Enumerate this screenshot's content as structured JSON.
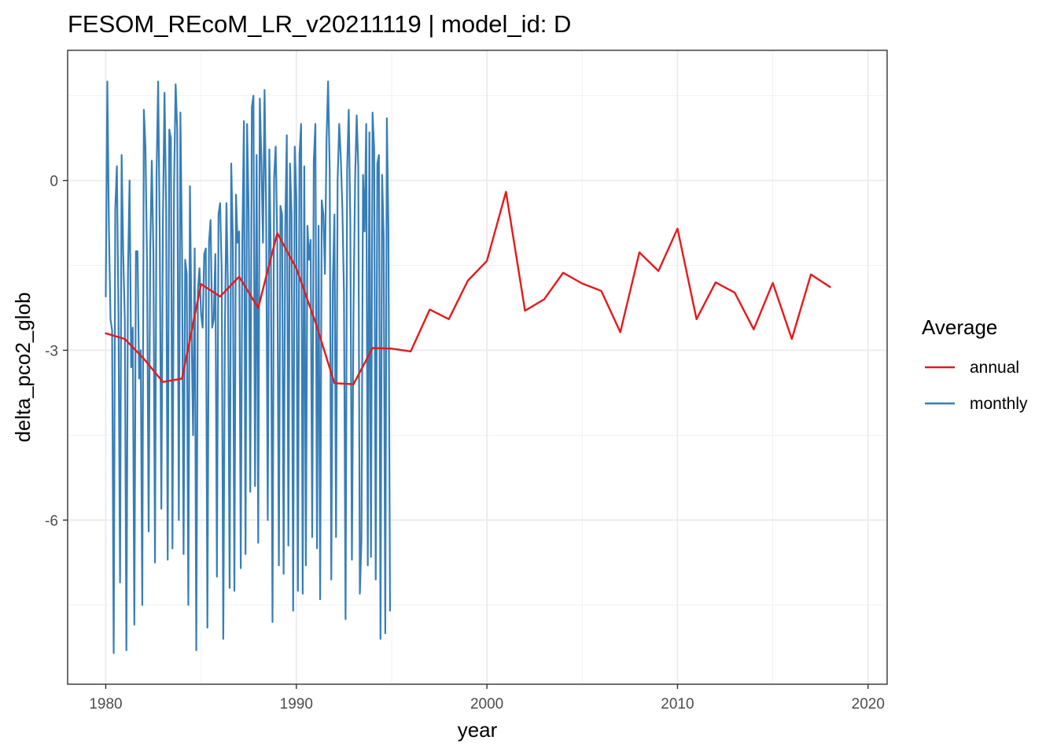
{
  "chart_data": {
    "type": "line",
    "title": "FESOM_REcoM_LR_v20211119 | model_id: D",
    "xlabel": "year",
    "ylabel": "delta_pco2_glob",
    "xlim": [
      1978,
      2021
    ],
    "ylim": [
      -8.9,
      2.3
    ],
    "x_ticks": [
      1980,
      1990,
      2000,
      2010,
      2020
    ],
    "x_tick_labels": [
      "1980",
      "1990",
      "2000",
      "2010",
      "2020"
    ],
    "y_ticks": [
      -6,
      -3,
      0
    ],
    "y_tick_labels": [
      "-6",
      "-3",
      "0"
    ],
    "grid": true,
    "legend": {
      "title": "Average",
      "position": "right",
      "entries": [
        "annual",
        "monthly"
      ]
    },
    "colors": {
      "annual": "#e41a1c",
      "monthly": "#377eb8"
    },
    "series": [
      {
        "name": "annual",
        "x": [
          1980,
          1981,
          1982,
          1983,
          1984,
          1985,
          1986,
          1987,
          1988,
          1989,
          1990,
          1991,
          1992,
          1993,
          1994,
          1995,
          1996,
          1997,
          1998,
          1999,
          2000,
          2001,
          2002,
          2003,
          2004,
          2005,
          2006,
          2007,
          2008,
          2009,
          2010,
          2011,
          2012,
          2013,
          2014,
          2015,
          2016,
          2017,
          2018
        ],
        "y": [
          -2.7,
          -2.8,
          -3.15,
          -3.56,
          -3.5,
          -1.83,
          -2.05,
          -1.7,
          -2.25,
          -0.93,
          -1.55,
          -2.5,
          -3.58,
          -3.6,
          -2.96,
          -2.97,
          -3.02,
          -2.28,
          -2.45,
          -1.77,
          -1.42,
          -0.2,
          -2.3,
          -2.1,
          -1.63,
          -1.82,
          -1.95,
          -2.68,
          -1.27,
          -1.6,
          -0.85,
          -2.45,
          -1.8,
          -1.98,
          -2.63,
          -1.81,
          -2.8,
          -1.66,
          -1.88
        ]
      },
      {
        "name": "monthly",
        "x_start": 1980.0,
        "x_step": 0.0833333,
        "y": [
          -2.05,
          1.75,
          -0.85,
          -2.45,
          -2.65,
          -8.35,
          -0.5,
          0.25,
          -2.35,
          -7.1,
          0.45,
          -1.3,
          -2.45,
          -8.3,
          -1.6,
          0.0,
          -3.3,
          -2.6,
          -7.85,
          -1.25,
          -1.25,
          -3.5,
          -3.0,
          -7.5,
          1.25,
          0.6,
          -1.45,
          -6.2,
          -1.2,
          0.35,
          -1.3,
          -6.75,
          0.15,
          1.75,
          -1.0,
          -5.8,
          -0.7,
          1.55,
          -0.45,
          -6.7,
          0.9,
          0.75,
          -6.5,
          -0.1,
          1.7,
          0.9,
          -6.0,
          1.2,
          -1.2,
          -6.6,
          -1.4,
          -1.65,
          -7.5,
          -0.1,
          -2.6,
          -4.5,
          -1.2,
          -8.3,
          -1.95,
          -1.55,
          -2.35,
          -2.6,
          -1.3,
          -1.2,
          -7.9,
          -1.1,
          -0.7,
          -2.6,
          -2.45,
          -1.3,
          -7.0,
          -0.6,
          -0.4,
          -1.6,
          -8.1,
          -2.7,
          -0.4,
          -2.0,
          -7.2,
          0.3,
          -1.0,
          -7.25,
          -0.25,
          -1.1,
          -0.9,
          -6.85,
          -1.05,
          1.05,
          -6.6,
          1.0,
          -0.6,
          -5.5,
          1.3,
          1.5,
          -5.4,
          0.45,
          -6.4,
          1.45,
          0.35,
          -1.1,
          1.6,
          -0.6,
          -6.0,
          0.55,
          -1.5,
          -7.8,
          0.05,
          0.6,
          -1.1,
          -6.8,
          -0.45,
          -0.6,
          -6.95,
          -0.85,
          0.8,
          -6.45,
          0.3,
          -0.6,
          -7.6,
          0.6,
          -0.3,
          -7.25,
          0.45,
          1.0,
          -7.3,
          0.25,
          -6.8,
          -0.8,
          -1.4,
          -1.05,
          -6.3,
          0.35,
          1.0,
          -6.5,
          -0.8,
          -7.4,
          -0.35,
          -0.6,
          -1.65,
          0.7,
          1.75,
          0.2,
          -7.05,
          -1.8,
          -0.6,
          -6.3,
          0.0,
          1.0,
          0.4,
          -0.5,
          -2.0,
          -7.75,
          0.2,
          1.25,
          -0.8,
          -6.7,
          -2.3,
          0.0,
          1.15,
          0.25,
          -7.3,
          -6.35,
          0.1,
          -0.9,
          1.0,
          -6.8,
          0.85,
          -6.65,
          1.2,
          0.55,
          -7.05,
          0.3,
          0.45,
          -8.1,
          0.1,
          -1.0,
          -8.0,
          1.1,
          -0.9,
          -7.6
        ]
      }
    ]
  }
}
